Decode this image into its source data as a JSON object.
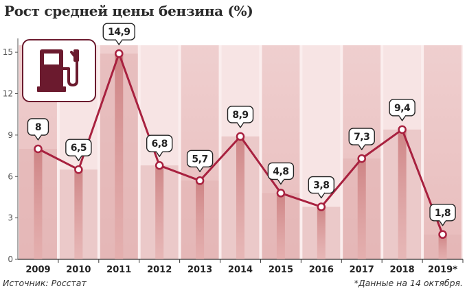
{
  "title": "Рост средней цены бензина (%)",
  "source": "Источник: Росстат",
  "footnote": "*Данные на 14 октября.",
  "icon": "fuel-pump-icon",
  "colors": {
    "line": "#a8213f",
    "accent_dark": "#6b1a2e",
    "column_light": "#f4dcdc",
    "column_mid": "#e7bdbc"
  },
  "chart_data": {
    "type": "line",
    "title": "Рост средней цены бензина (%)",
    "categories": [
      "2009",
      "2010",
      "2011",
      "2012",
      "2013",
      "2014",
      "2015",
      "2016",
      "2017",
      "2018",
      "2019*"
    ],
    "values": [
      8,
      6.5,
      14.9,
      6.8,
      5.7,
      8.9,
      4.8,
      3.8,
      7.3,
      9.4,
      1.8
    ],
    "labels": [
      "8",
      "6,5",
      "14,9",
      "6,8",
      "5,7",
      "8,9",
      "4,8",
      "3,8",
      "7,3",
      "9,4",
      "1,8"
    ],
    "yticks": [
      0,
      3,
      6,
      9,
      12,
      15
    ],
    "ylim": [
      0,
      16
    ],
    "xlabel": "",
    "ylabel": "",
    "grid": false,
    "legend": "none"
  }
}
